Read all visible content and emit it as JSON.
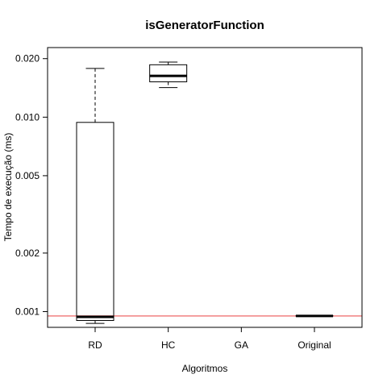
{
  "chart_data": {
    "type": "boxplot",
    "title": "isGeneratorFunction",
    "xlabel": "Algoritmos",
    "ylabel": "Tempo de execução (ms)",
    "y_scale": "log",
    "ylim": [
      0.00083,
      0.0228
    ],
    "y_ticks": [
      {
        "value": 0.02,
        "label": "0.020"
      },
      {
        "value": 0.01,
        "label": "0.010"
      },
      {
        "value": 0.005,
        "label": "0.005"
      },
      {
        "value": 0.002,
        "label": "0.002"
      },
      {
        "value": 0.001,
        "label": "0.001"
      }
    ],
    "categories": [
      "RD",
      "HC",
      "GA",
      "Original"
    ],
    "boxes": [
      {
        "category": "RD",
        "whisker_low": 0.00087,
        "q1": 0.0009,
        "median": 0.00094,
        "q3": 0.0094,
        "whisker_high": 0.0178
      },
      {
        "category": "HC",
        "whisker_low": 0.0142,
        "q1": 0.0152,
        "median": 0.0163,
        "q3": 0.0186,
        "whisker_high": 0.0192
      },
      {
        "category": "GA"
      },
      {
        "category": "Original",
        "whisker_low": 0.00095,
        "q1": 0.00095,
        "median": 0.00095,
        "q3": 0.00095,
        "whisker_high": 0.00095
      }
    ],
    "reference_line": {
      "value": 0.00095,
      "color": "#f08080"
    },
    "grid": false,
    "legend": "none"
  }
}
